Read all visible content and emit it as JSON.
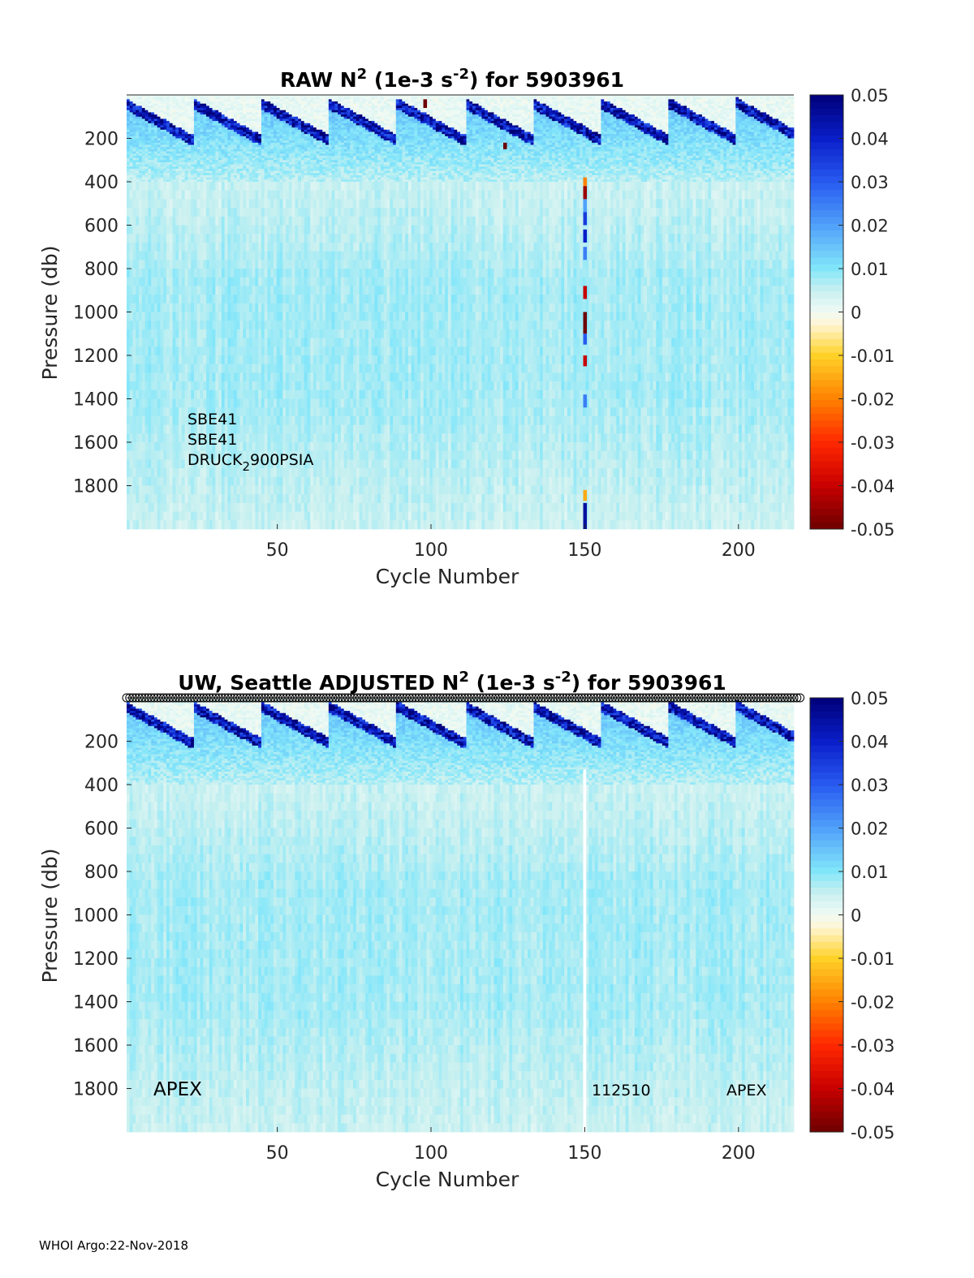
{
  "footer": "WHOI Argo:22-Nov-2018",
  "chart_data": [
    {
      "type": "heatmap",
      "title": {
        "main": "RAW N",
        "sup1": "2",
        "mid": " (1e-3 s",
        "sup2": "-2",
        "end": ") for 5903961"
      },
      "xlabel": "Cycle Number",
      "ylabel": "Pressure (db)",
      "xlim": [
        1,
        218
      ],
      "ylim": [
        2000,
        0
      ],
      "xticks": [
        50,
        100,
        150,
        200
      ],
      "yticks": [
        200,
        400,
        600,
        800,
        1000,
        1200,
        1400,
        1600,
        1800
      ],
      "clim": [
        -0.05,
        0.05
      ],
      "colorbar_ticks": [
        0.05,
        0.04,
        0.03,
        0.02,
        0.01,
        0,
        -0.01,
        -0.02,
        -0.03,
        -0.04,
        -0.05
      ],
      "annotations": [
        "SBE41",
        "SBE41",
        "DRUCK",
        "2",
        "900PSIA"
      ],
      "anomalies": [
        {
          "x": 150,
          "p": [
            380,
            420
          ],
          "v": -0.02
        },
        {
          "x": 150,
          "p": [
            420,
            480
          ],
          "v": -0.045
        },
        {
          "x": 150,
          "p": [
            480,
            540
          ],
          "v": 0.02
        },
        {
          "x": 150,
          "p": [
            540,
            600
          ],
          "v": 0.035
        },
        {
          "x": 150,
          "p": [
            620,
            680
          ],
          "v": 0.04
        },
        {
          "x": 150,
          "p": [
            700,
            760
          ],
          "v": 0.025
        },
        {
          "x": 150,
          "p": [
            880,
            940
          ],
          "v": -0.04
        },
        {
          "x": 150,
          "p": [
            1000,
            1100
          ],
          "v": -0.05
        },
        {
          "x": 150,
          "p": [
            1100,
            1150
          ],
          "v": 0.03
        },
        {
          "x": 150,
          "p": [
            1200,
            1250
          ],
          "v": -0.04
        },
        {
          "x": 150,
          "p": [
            1380,
            1440
          ],
          "v": 0.025
        },
        {
          "x": 150,
          "p": [
            1820,
            1870
          ],
          "v": -0.015
        },
        {
          "x": 150,
          "p": [
            1880,
            2000
          ],
          "v": 0.045
        },
        {
          "x": 98,
          "p": [
            20,
            60
          ],
          "v": -0.05
        },
        {
          "x": 124,
          "p": [
            220,
            250
          ],
          "v": -0.05
        }
      ]
    },
    {
      "type": "heatmap",
      "title": {
        "main": "UW, Seattle  ADJUSTED N",
        "sup1": "2",
        "mid": " (1e-3 s",
        "sup2": "-2",
        "end": ") for 5903961"
      },
      "xlabel": "Cycle Number",
      "ylabel": "Pressure (db)",
      "xlim": [
        1,
        218
      ],
      "ylim": [
        2000,
        0
      ],
      "xticks": [
        50,
        100,
        150,
        200
      ],
      "yticks": [
        200,
        400,
        600,
        800,
        1000,
        1200,
        1400,
        1600,
        1800
      ],
      "clim": [
        -0.05,
        0.05
      ],
      "colorbar_ticks": [
        0.05,
        0.04,
        0.03,
        0.02,
        0.01,
        0,
        -0.01,
        -0.02,
        -0.03,
        -0.04,
        -0.05
      ],
      "annotations": [
        "APEX",
        "112510",
        "APEX"
      ],
      "gap": {
        "x": 150,
        "p": [
          330,
          2000
        ]
      },
      "markers": {
        "shape": "circle",
        "x_range": [
          1,
          220
        ]
      }
    }
  ]
}
